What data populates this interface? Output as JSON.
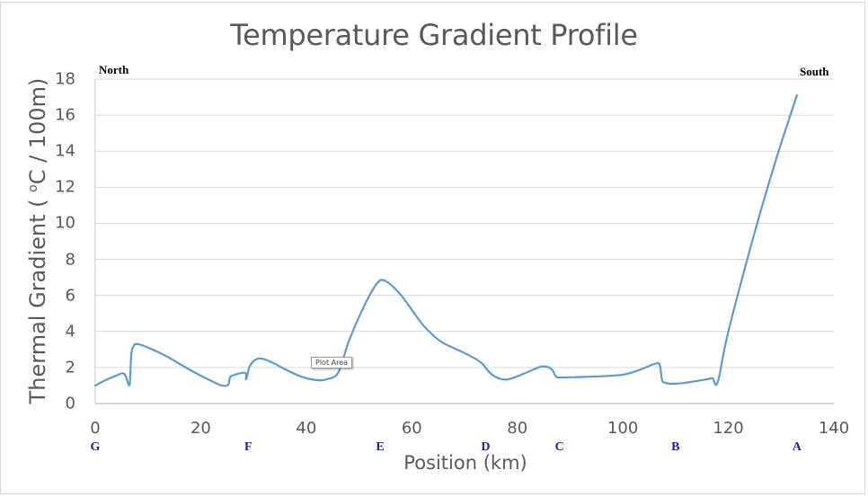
{
  "chart_data": {
    "type": "line",
    "title": "Temperature Gradient Profile",
    "xlabel": "Position (km)",
    "ylabel_prefix": "Thermal Gradient ( ",
    "ylabel_degree": "o",
    "ylabel_suffix": "C / 100m)",
    "xlim": [
      0,
      140
    ],
    "ylim": [
      0,
      18
    ],
    "x_ticks": [
      0,
      20,
      40,
      60,
      80,
      100,
      120,
      140
    ],
    "y_ticks": [
      0,
      2,
      4,
      6,
      8,
      10,
      12,
      14,
      16,
      18
    ],
    "grid": {
      "horizontal": true,
      "vertical": false
    },
    "legend": null,
    "line_color": "#5b9bd5",
    "series": [
      {
        "name": "Thermal Gradient",
        "points": [
          [
            0,
            1.0
          ],
          [
            2,
            1.3
          ],
          [
            4,
            1.55
          ],
          [
            5.2,
            1.68
          ],
          [
            5.8,
            1.5
          ],
          [
            6.5,
            1.05
          ],
          [
            6.8,
            2.6
          ],
          [
            7.2,
            3.15
          ],
          [
            8,
            3.3
          ],
          [
            10,
            3.1
          ],
          [
            13,
            2.7
          ],
          [
            16,
            2.2
          ],
          [
            19,
            1.7
          ],
          [
            22,
            1.25
          ],
          [
            24,
            1.0
          ],
          [
            25.2,
            1.05
          ],
          [
            25.5,
            1.4
          ],
          [
            26,
            1.55
          ],
          [
            28.4,
            1.7
          ],
          [
            28.6,
            1.35
          ],
          [
            29.2,
            2.0
          ],
          [
            30,
            2.35
          ],
          [
            31.2,
            2.5
          ],
          [
            33,
            2.35
          ],
          [
            36,
            1.9
          ],
          [
            39,
            1.5
          ],
          [
            42,
            1.3
          ],
          [
            44,
            1.35
          ],
          [
            45.8,
            1.6
          ],
          [
            46.8,
            2.3
          ],
          [
            48,
            3.4
          ],
          [
            50,
            4.8
          ],
          [
            52,
            6.0
          ],
          [
            53.5,
            6.7
          ],
          [
            54.5,
            6.85
          ],
          [
            56,
            6.6
          ],
          [
            58,
            6.0
          ],
          [
            60,
            5.2
          ],
          [
            62,
            4.4
          ],
          [
            64,
            3.8
          ],
          [
            66,
            3.35
          ],
          [
            70,
            2.8
          ],
          [
            73,
            2.3
          ],
          [
            75,
            1.65
          ],
          [
            77,
            1.35
          ],
          [
            79,
            1.4
          ],
          [
            82,
            1.75
          ],
          [
            84.5,
            2.05
          ],
          [
            86,
            2.0
          ],
          [
            86.8,
            1.8
          ],
          [
            87.4,
            1.48
          ],
          [
            89,
            1.45
          ],
          [
            95,
            1.5
          ],
          [
            100,
            1.6
          ],
          [
            103,
            1.85
          ],
          [
            106,
            2.2
          ],
          [
            107,
            2.15
          ],
          [
            107.4,
            1.35
          ],
          [
            108,
            1.15
          ],
          [
            110,
            1.1
          ],
          [
            113,
            1.2
          ],
          [
            116,
            1.35
          ],
          [
            117,
            1.4
          ],
          [
            118,
            1.2
          ],
          [
            120,
            4.0
          ],
          [
            125,
            9.5
          ],
          [
            129,
            13.5
          ],
          [
            133,
            17.1
          ]
        ]
      }
    ],
    "annotations": {
      "directions": [
        {
          "label": "North",
          "position": "top-left"
        },
        {
          "label": "South",
          "position": "top-right"
        }
      ],
      "stations": [
        {
          "label": "G",
          "x": 0
        },
        {
          "label": "F",
          "x": 29
        },
        {
          "label": "E",
          "x": 54
        },
        {
          "label": "D",
          "x": 74
        },
        {
          "label": "C",
          "x": 88
        },
        {
          "label": "B",
          "x": 110
        },
        {
          "label": "A",
          "x": 133
        }
      ]
    },
    "tooltip": "Plot Area"
  }
}
